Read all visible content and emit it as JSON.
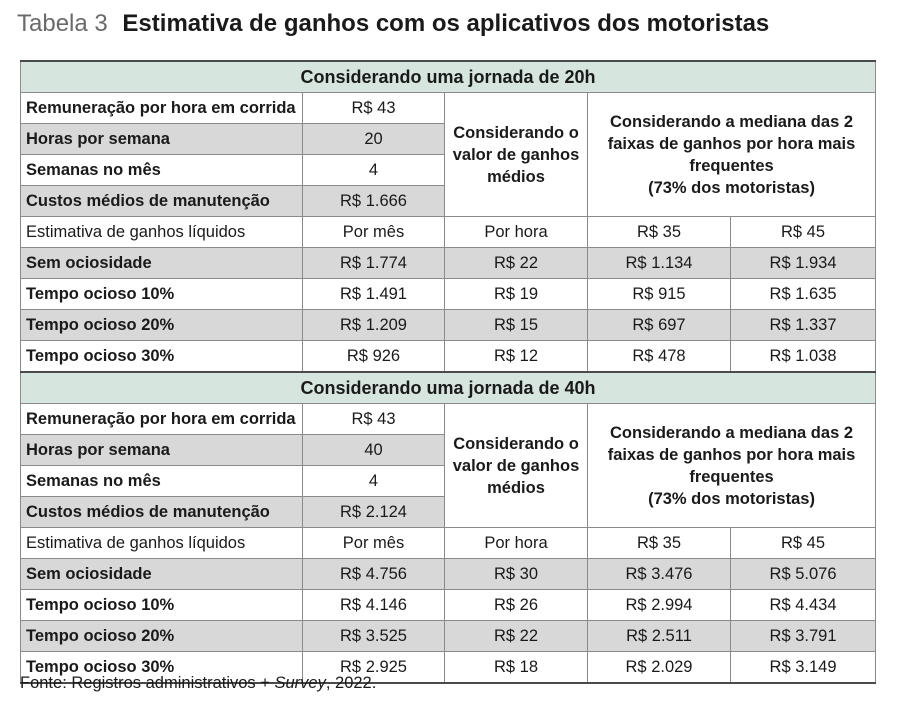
{
  "header": {
    "table_label": "Tabela 3",
    "title": "Estimativa de ganhos com os aplicativos dos motoristas"
  },
  "sections": [
    {
      "title": "Considerando uma jornada de 20h",
      "params": [
        {
          "label": "Remuneração por hora em corrida",
          "value": "R$ 43"
        },
        {
          "label": "Horas por semana",
          "value": "20"
        },
        {
          "label": "Semanas no mês",
          "value": "4"
        },
        {
          "label": "Custos médios de manutenção",
          "value": "R$ 1.666"
        }
      ],
      "avg_note": "Considerando o valor de ganhos médios",
      "median_note": "Considerando a mediana das 2 faixas de ganhos por hora mais frequentes",
      "median_share": "(73% dos motoristas)",
      "estimate_row": {
        "label": "Estimativa de ganhos líquidos",
        "per_month": "Por mês",
        "per_hour": "Por hora",
        "band1": "R$ 35",
        "band2": "R$ 45"
      },
      "rows": [
        {
          "label": "Sem ociosidade",
          "per_month": "R$ 1.774",
          "per_hour": "R$ 22",
          "band1": "R$  1.134",
          "band2": "R$ 1.934"
        },
        {
          "label": "Tempo ocioso 10%",
          "per_month": "R$ 1.491",
          "per_hour": "R$ 19",
          "band1": "R$ 915",
          "band2": "R$ 1.635"
        },
        {
          "label": "Tempo ocioso 20%",
          "per_month": "R$ 1.209",
          "per_hour": "R$ 15",
          "band1": "R$ 697",
          "band2": "R$ 1.337"
        },
        {
          "label": "Tempo ocioso 30%",
          "per_month": "R$ 926",
          "per_hour": "R$ 12",
          "band1": "R$ 478",
          "band2": "R$ 1.038"
        }
      ]
    },
    {
      "title": "Considerando uma jornada de 40h",
      "params": [
        {
          "label": "Remuneração por hora em corrida",
          "value": "R$ 43"
        },
        {
          "label": "Horas por semana",
          "value": "40"
        },
        {
          "label": "Semanas no mês",
          "value": "4"
        },
        {
          "label": "Custos médios de manutenção",
          "value": "R$ 2.124"
        }
      ],
      "avg_note": "Considerando o valor de ganhos médios",
      "median_note": "Considerando a mediana das 2 faixas de ganhos por hora mais frequentes",
      "median_share": "(73% dos motoristas)",
      "estimate_row": {
        "label": "Estimativa de ganhos líquidos",
        "per_month": "Por mês",
        "per_hour": "Por hora",
        "band1": "R$ 35",
        "band2": "R$ 45"
      },
      "rows": [
        {
          "label": "Sem ociosidade",
          "per_month": "R$ 4.756",
          "per_hour": "R$ 30",
          "band1": "R$ 3.476",
          "band2": "R$ 5.076"
        },
        {
          "label": "Tempo ocioso 10%",
          "per_month": "R$ 4.146",
          "per_hour": "R$ 26",
          "band1": "R$ 2.994",
          "band2": "R$ 4.434"
        },
        {
          "label": "Tempo ocioso 20%",
          "per_month": "R$ 3.525",
          "per_hour": "R$ 22",
          "band1": "R$ 2.511",
          "band2": "R$ 3.791"
        },
        {
          "label": "Tempo ocioso 30%",
          "per_month": "R$ 2.925",
          "per_hour": "R$ 18",
          "band1": "R$ 2.029",
          "band2": "R$ 3.149"
        }
      ]
    }
  ],
  "footer": {
    "source_prefix": "Fonte: Registros administrativos + ",
    "source_italic": "Survey",
    "source_suffix": ", 2022."
  },
  "colors": {
    "section_band": "#d6e6df",
    "grey_band": "#d8d8d8",
    "border": "#8a8a8a"
  }
}
